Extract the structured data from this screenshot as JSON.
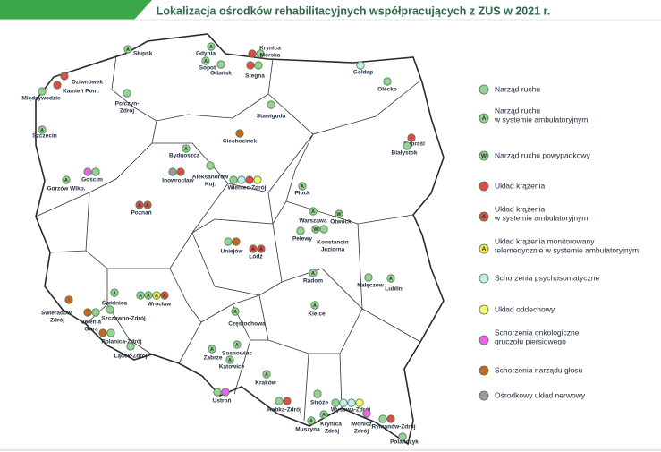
{
  "title": "Lokalizacja ośrodków rehabilitacyjnych współpracujących z ZUS w 2021 r.",
  "legend": [
    {
      "label": [
        "Narząd ruchu"
      ],
      "color": "#96d296"
    },
    {
      "label": [
        "Narząd ruchu",
        "w systemie ambulatoryjnym"
      ],
      "color": "#96d296",
      "letter": "A"
    },
    {
      "label": [
        "Narząd ruchu powypadkowy"
      ],
      "color": "#96d296",
      "letter": "W"
    },
    {
      "label": [
        "Układ krążenia"
      ],
      "color": "#e24a4a"
    },
    {
      "label": [
        "Układ krążenia",
        "w systemie ambulatoryjnym"
      ],
      "color": "#e24a4a",
      "letter": "A"
    },
    {
      "label": [
        "Układ krążenia monitorowany",
        "telemedycznie w systemie ambulatoryjnym"
      ],
      "color": "#f2e64a",
      "letter": "A"
    },
    {
      "label": [
        "Schorzenia psychosomatyczne"
      ],
      "color": "#c6eef2"
    },
    {
      "label": [
        "Układ oddechowy"
      ],
      "color": "#f6f46a"
    },
    {
      "label": [
        "Schorzenia onkologiczne",
        "gruczołu piersiowego"
      ],
      "color": "#f062ee"
    },
    {
      "label": [
        "Schorzenia narządu głosu"
      ],
      "color": "#c8661e"
    },
    {
      "label": [
        "Ośrodkowy układ nerwowy"
      ],
      "color": "#9a9a9a"
    }
  ],
  "centers": [
    {
      "name": [
        "Słupsk"
      ],
      "markers": [
        1
      ]
    },
    {
      "name": [
        "Gdynia"
      ],
      "markers": [
        1
      ]
    },
    {
      "name": [
        "Sopot"
      ],
      "markers": [
        1
      ]
    },
    {
      "name": [
        "Gdańsk"
      ],
      "markers": [
        0
      ]
    },
    {
      "name": [
        "Krynica",
        "Morska"
      ],
      "markers": [
        3,
        0
      ]
    },
    {
      "name": [
        "Stegna"
      ],
      "markers": [
        3,
        0
      ]
    },
    {
      "name": [
        "Dziwnówek"
      ],
      "markers": [
        3
      ]
    },
    {
      "name": [
        "Kamień Pom."
      ],
      "markers": [
        3
      ]
    },
    {
      "name": [
        "Międzywodzie"
      ],
      "markers": [
        0
      ]
    },
    {
      "name": [
        "Połczyn-",
        "Zdrój"
      ],
      "markers": [
        0
      ]
    },
    {
      "name": [
        "Gołdap"
      ],
      "markers": [
        6
      ]
    },
    {
      "name": [
        "Olecko"
      ],
      "markers": [
        0
      ]
    },
    {
      "name": [
        "Stawiguda"
      ],
      "markers": [
        0
      ]
    },
    {
      "name": [
        "Szczecin"
      ],
      "markers": [
        1
      ]
    },
    {
      "name": [
        "Supraśl"
      ],
      "markers": [
        3
      ]
    },
    {
      "name": [
        "Białystok"
      ],
      "markers": [
        0
      ]
    },
    {
      "name": [
        "Bydgoszcz"
      ],
      "markers": [
        1
      ]
    },
    {
      "name": [
        "Ciechocinek"
      ],
      "markers": [
        9
      ]
    },
    {
      "name": [
        "Aleksandrów",
        "Kuj."
      ],
      "markers": [
        0
      ]
    },
    {
      "name": [
        "Inowrocław"
      ],
      "markers": [
        10,
        3
      ]
    },
    {
      "name": [
        "Wieniec-Zdrój"
      ],
      "markers": [
        0,
        6,
        3,
        7
      ]
    },
    {
      "name": [
        "Gorzów Wlkp."
      ],
      "markers": [
        1
      ]
    },
    {
      "name": [
        "Gościm"
      ],
      "markers": [
        8,
        0
      ]
    },
    {
      "name": [
        "Płock"
      ],
      "markers": [
        1
      ]
    },
    {
      "name": [
        "Poznań"
      ],
      "markers": [
        4,
        4
      ]
    },
    {
      "name": [
        "Warszawa"
      ],
      "markers": [
        1
      ]
    },
    {
      "name": [
        "Otwock"
      ],
      "markers": [
        2
      ]
    },
    {
      "name": [
        "Pelewy"
      ],
      "markers": [
        0
      ]
    },
    {
      "name": [
        "Konstancin",
        "Jeziorna"
      ],
      "markers": [
        2,
        0
      ]
    },
    {
      "name": [
        "Uniejów"
      ],
      "markers": [
        0,
        9
      ]
    },
    {
      "name": [
        "Łódź"
      ],
      "markers": [
        4,
        4
      ]
    },
    {
      "name": [
        "Radom"
      ],
      "markers": [
        1
      ]
    },
    {
      "name": [
        "Nałęczów"
      ],
      "markers": [
        0
      ]
    },
    {
      "name": [
        "Lublin"
      ],
      "markers": [
        1
      ]
    },
    {
      "name": [
        "Świeradów",
        "-Zdrój"
      ],
      "markers": [
        9
      ]
    },
    {
      "name": [
        "Świdnica"
      ],
      "markers": [
        1
      ]
    },
    {
      "name": [
        "Wrocław"
      ],
      "markers": [
        1,
        1,
        5,
        4
      ]
    },
    {
      "name": [
        "Jelenia",
        "Góra"
      ],
      "markers": [
        9,
        0
      ]
    },
    {
      "name": [
        "Szczawno-Zdrój"
      ],
      "markers": [
        0
      ]
    },
    {
      "name": [
        "Kielce"
      ],
      "markers": [
        1
      ]
    },
    {
      "name": [
        "Częstochowa"
      ],
      "markers": [
        1
      ]
    },
    {
      "name": [
        "Polanica-Zdrój"
      ],
      "markers": [
        9,
        0
      ]
    },
    {
      "name": [
        "Lądek-Zdrój"
      ],
      "markers": [
        0
      ]
    },
    {
      "name": [
        "Zabrze"
      ],
      "markers": [
        1
      ]
    },
    {
      "name": [
        "Sosnowiec"
      ],
      "markers": [
        1
      ]
    },
    {
      "name": [
        "Katowice"
      ],
      "markers": [
        1
      ]
    },
    {
      "name": [
        "Kraków"
      ],
      "markers": [
        1
      ]
    },
    {
      "name": [
        "Ustroń"
      ],
      "markers": [
        0,
        8
      ]
    },
    {
      "name": [
        "Rabka-Zdrój"
      ],
      "markers": [
        0,
        3
      ]
    },
    {
      "name": [
        "Stróże"
      ],
      "markers": [
        0
      ]
    },
    {
      "name": [
        "Wysowa-Zdrój"
      ],
      "markers": [
        0,
        6,
        6,
        7
      ]
    },
    {
      "name": [
        "Krynica",
        "-Zdrój"
      ],
      "markers": [
        1
      ]
    },
    {
      "name": [
        "Muszyna"
      ],
      "markers": [
        1
      ]
    },
    {
      "name": [
        "Iwonicz",
        "Zdrój"
      ],
      "markers": [
        8
      ]
    },
    {
      "name": [
        "Rymanów-Zdrój"
      ],
      "markers": [
        0,
        3
      ]
    },
    {
      "name": [
        "Polańczyk"
      ],
      "markers": [
        0
      ]
    }
  ]
}
